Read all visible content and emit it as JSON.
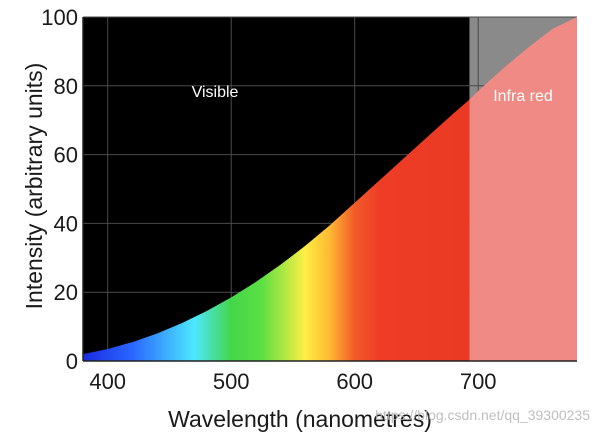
{
  "chart_data": {
    "type": "area",
    "title": "",
    "xlabel": "Wavelength (nanometres)",
    "ylabel": "Intensity (arbitrary units)",
    "xlim": [
      380,
      780
    ],
    "ylim": [
      0,
      100
    ],
    "x_ticks": [
      400,
      500,
      600,
      700
    ],
    "y_ticks": [
      0,
      20,
      40,
      60,
      80,
      100
    ],
    "grid": true,
    "visible_infrared_boundary": 693,
    "regions": [
      {
        "label": "Visible",
        "range": [
          380,
          693
        ],
        "background": "#000000"
      },
      {
        "label": "Infra red",
        "range": [
          693,
          780
        ],
        "background": "#8a8a8a",
        "fill": "#f08a84"
      }
    ],
    "x": [
      380,
      400,
      420,
      440,
      460,
      480,
      500,
      520,
      540,
      560,
      580,
      600,
      620,
      640,
      660,
      680,
      693,
      700,
      720,
      740,
      760,
      780
    ],
    "y": [
      2.0,
      3.5,
      5.5,
      8.0,
      11.0,
      14.5,
      18.5,
      23.0,
      28.0,
      33.5,
      39.5,
      46.0,
      52.5,
      59.0,
      65.5,
      72.0,
      76.0,
      78.5,
      85.0,
      91.0,
      96.5,
      100.0
    ],
    "spectrum_colors": [
      {
        "x": 380,
        "color": "#1a2be0"
      },
      {
        "x": 420,
        "color": "#2a66ff"
      },
      {
        "x": 470,
        "color": "#4de8ff"
      },
      {
        "x": 500,
        "color": "#44d64a"
      },
      {
        "x": 525,
        "color": "#5ce042"
      },
      {
        "x": 560,
        "color": "#ffee44"
      },
      {
        "x": 580,
        "color": "#ffb833"
      },
      {
        "x": 600,
        "color": "#f25a28"
      },
      {
        "x": 620,
        "color": "#ee3d26"
      },
      {
        "x": 693,
        "color": "#ea3a24"
      }
    ],
    "watermark": "https://blog.csdn.net/qq_39300235"
  }
}
